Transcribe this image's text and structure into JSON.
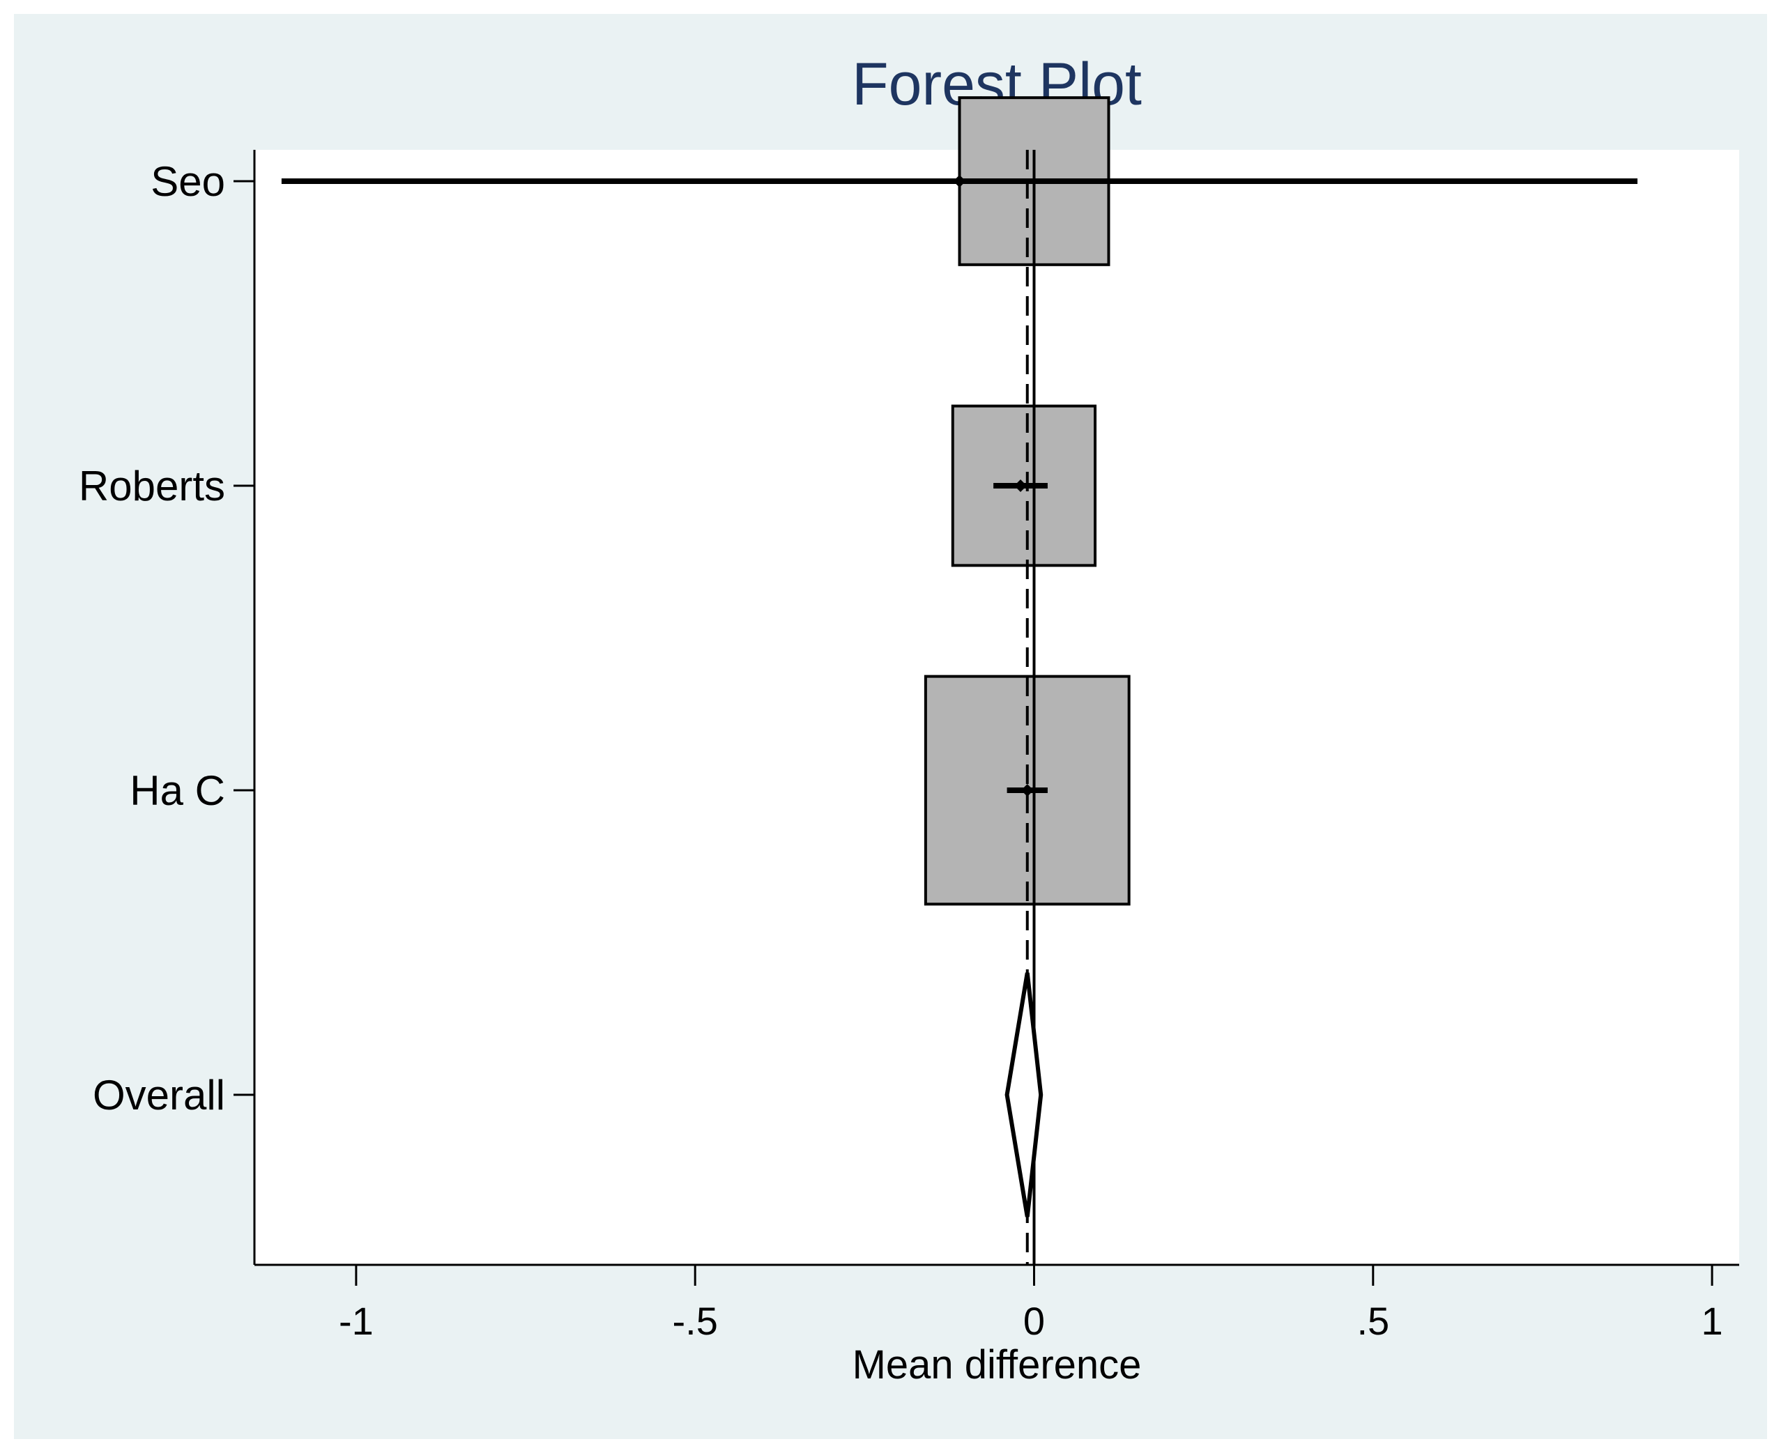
{
  "chart_data": {
    "type": "forest",
    "title": "Forest Plot",
    "xlabel": "Mean difference",
    "ylabel": "",
    "xlim": [
      -1.15,
      1.04
    ],
    "xticks": [
      -1,
      -0.5,
      0,
      0.5,
      1
    ],
    "xtick_labels": [
      "-1",
      "-.5",
      "0",
      ".5",
      "1"
    ],
    "grid": false,
    "reference_line": 0,
    "overall_line": -0.01,
    "studies": [
      {
        "label": "Seo",
        "estimate": -0.11,
        "ci_low": -1.11,
        "ci_high": 0.89,
        "weight_box": [
          -0.11,
          0.11
        ]
      },
      {
        "label": "Roberts",
        "estimate": -0.02,
        "ci_low": -0.06,
        "ci_high": 0.02,
        "weight_box": [
          -0.12,
          0.09
        ]
      },
      {
        "label": "Ha C",
        "estimate": -0.01,
        "ci_low": -0.04,
        "ci_high": 0.02,
        "weight_box": [
          -0.16,
          0.14
        ]
      }
    ],
    "overall": {
      "label": "Overall",
      "estimate": -0.01,
      "ci_low": -0.04,
      "ci_high": 0.01
    }
  }
}
